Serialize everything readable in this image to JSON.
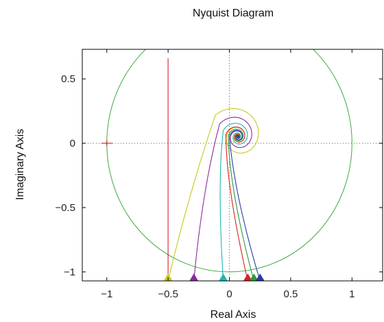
{
  "chart_data": {
    "type": "line",
    "title": "Nyquist Diagram",
    "xlabel": "Real Axis",
    "ylabel": "Imaginary Axis",
    "xlim": [
      -1.2,
      1.25
    ],
    "ylim": [
      -1.07,
      0.73
    ],
    "xticks": [
      -1,
      -0.5,
      0,
      0.5,
      1
    ],
    "xtick_labels": [
      "−1",
      "−0.5",
      "0",
      "0.5",
      "1"
    ],
    "yticks": [
      -1,
      -0.5,
      0,
      0.5
    ],
    "ytick_labels": [
      "−1",
      "−0.5",
      "0",
      "0.5"
    ],
    "grid": "dotted lines at x=0 and y=0",
    "critical_point": {
      "x": -1,
      "y": 0
    },
    "unit_circle": {
      "center": [
        0,
        0
      ],
      "radius": 1,
      "color": "#3daa3d"
    },
    "series": [
      {
        "color": "#d62020",
        "points": [
          [
            -0.5,
            -1.07
          ],
          [
            -0.5,
            0.66
          ]
        ]
      },
      {
        "color": "#c8c81e",
        "spiral": {
          "start": [
            -0.5,
            -1.07
          ],
          "join": [
            -0.34,
            -0.42
          ],
          "radius_start": 0.25,
          "phase_start": 2.4,
          "turns": 3.4,
          "decay": 0.55
        }
      },
      {
        "color": "#8a2a9a",
        "spiral": {
          "start": [
            -0.29,
            -1.07
          ],
          "join": [
            -0.22,
            -0.35
          ],
          "radius_start": 0.18,
          "phase_start": 2.55,
          "turns": 3.6,
          "decay": 0.6
        }
      },
      {
        "color": "#18b8b8",
        "spiral": {
          "start": [
            -0.05,
            -1.07
          ],
          "join": [
            -0.1,
            -0.3
          ],
          "radius_start": 0.13,
          "phase_start": 2.75,
          "turns": 3.8,
          "decay": 0.62
        }
      },
      {
        "color": "#d62020",
        "spiral": {
          "start": [
            0.15,
            -1.07
          ],
          "join": [
            -0.03,
            -0.32
          ],
          "radius_start": 0.1,
          "phase_start": 2.95,
          "turns": 4.0,
          "decay": 0.65
        }
      },
      {
        "color": "#2a9a3a",
        "spiral": {
          "start": [
            0.2,
            -1.07
          ],
          "join": [
            0.0,
            -0.36
          ],
          "radius_start": 0.08,
          "phase_start": 3.05,
          "turns": 4.2,
          "decay": 0.68
        }
      },
      {
        "color": "#2a3aa8",
        "spiral": {
          "start": [
            0.25,
            -1.07
          ],
          "join": [
            0.04,
            -0.4
          ],
          "radius_start": 0.07,
          "phase_start": 3.15,
          "turns": 4.4,
          "decay": 0.7
        }
      }
    ],
    "markers": [
      {
        "x": -0.5,
        "color": "#c8c81e"
      },
      {
        "x": -0.29,
        "color": "#8a2a9a"
      },
      {
        "x": -0.05,
        "color": "#18b8b8"
      },
      {
        "x": 0.15,
        "color": "#d62020"
      },
      {
        "x": 0.2,
        "color": "#2a9a3a"
      },
      {
        "x": 0.25,
        "color": "#2a3aa8"
      }
    ]
  }
}
